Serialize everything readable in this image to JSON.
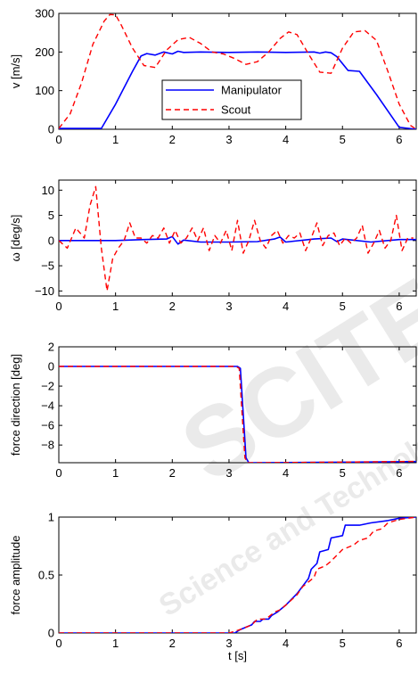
{
  "watermark": {
    "main": "SCITEPRESS",
    "sub": "Science and Technology Publications",
    "color": "#d9d9d9"
  },
  "legend": {
    "entries": [
      {
        "label": "Manipulator",
        "color": "#0000ff",
        "dash": "solid"
      },
      {
        "label": "Scout",
        "color": "#ff0000",
        "dash": "dashed"
      }
    ]
  },
  "chart_data": [
    {
      "type": "line",
      "xlabel": "",
      "ylabel": "v [m/s]",
      "xlim": [
        0,
        6.3
      ],
      "ylim": [
        0,
        300
      ],
      "xticks": [
        0,
        1,
        2,
        3,
        4,
        5,
        6
      ],
      "yticks": [
        0,
        100,
        200,
        300
      ],
      "legend_position": "center",
      "series": [
        {
          "name": "Manipulator",
          "color": "#0000ff",
          "dash": "solid",
          "x": [
            0,
            0.75,
            1.0,
            1.3,
            1.45,
            1.55,
            1.7,
            1.85,
            2.0,
            2.1,
            2.2,
            2.5,
            3.0,
            3.5,
            4.0,
            4.5,
            4.6,
            4.7,
            4.8,
            4.9,
            5.1,
            5.3,
            5.6,
            6.0,
            6.3
          ],
          "y": [
            2,
            2,
            65,
            150,
            190,
            196,
            192,
            200,
            195,
            202,
            199,
            200,
            199,
            200,
            199,
            200,
            197,
            200,
            198,
            188,
            152,
            150,
            90,
            5,
            0
          ]
        },
        {
          "name": "Scout",
          "color": "#ff0000",
          "dash": "dashed",
          "x": [
            0,
            0.2,
            0.4,
            0.6,
            0.8,
            0.9,
            1.0,
            1.1,
            1.3,
            1.5,
            1.7,
            1.9,
            2.1,
            2.3,
            2.5,
            2.7,
            2.9,
            3.1,
            3.3,
            3.5,
            3.7,
            3.9,
            4.05,
            4.2,
            4.4,
            4.6,
            4.8,
            5.0,
            5.2,
            5.4,
            5.6,
            5.8,
            6.0,
            6.2,
            6.3
          ],
          "y": [
            2,
            40,
            120,
            220,
            280,
            297,
            296,
            270,
            210,
            165,
            160,
            205,
            232,
            238,
            222,
            200,
            195,
            183,
            168,
            175,
            200,
            235,
            252,
            245,
            195,
            148,
            145,
            210,
            252,
            255,
            230,
            150,
            65,
            10,
            0
          ]
        }
      ]
    },
    {
      "type": "line",
      "xlabel": "",
      "ylabel": "ω [deg/s]",
      "xlim": [
        0,
        6.3
      ],
      "ylim": [
        -11,
        12
      ],
      "xticks": [
        0,
        1,
        2,
        3,
        4,
        5,
        6
      ],
      "yticks": [
        -10,
        -5,
        0,
        5,
        10
      ],
      "series": [
        {
          "name": "Manipulator",
          "color": "#0000ff",
          "dash": "solid",
          "x": [
            0,
            1.0,
            1.5,
            1.9,
            2.0,
            2.1,
            2.2,
            2.5,
            3.0,
            3.5,
            3.8,
            3.9,
            4.0,
            4.5,
            4.8,
            4.9,
            5.0,
            5.5,
            6.0,
            6.3
          ],
          "y": [
            0,
            0,
            0.2,
            0.3,
            0.8,
            -0.7,
            0.1,
            -0.3,
            -0.3,
            -0.2,
            0.3,
            0.7,
            -0.3,
            0.3,
            0.5,
            -0.2,
            0.3,
            -0.3,
            0.2,
            0.2
          ]
        },
        {
          "name": "Scout",
          "color": "#ff0000",
          "dash": "dashed",
          "x": [
            0,
            0.15,
            0.3,
            0.45,
            0.55,
            0.65,
            0.75,
            0.85,
            0.95,
            1.05,
            1.15,
            1.25,
            1.35,
            1.45,
            1.55,
            1.65,
            1.75,
            1.85,
            1.95,
            2.05,
            2.15,
            2.25,
            2.35,
            2.45,
            2.55,
            2.65,
            2.75,
            2.85,
            2.95,
            3.05,
            3.15,
            3.25,
            3.35,
            3.45,
            3.55,
            3.65,
            3.75,
            3.85,
            3.95,
            4.05,
            4.15,
            4.25,
            4.35,
            4.45,
            4.55,
            4.65,
            4.75,
            4.85,
            4.95,
            5.05,
            5.15,
            5.25,
            5.35,
            5.45,
            5.55,
            5.65,
            5.75,
            5.85,
            5.95,
            6.05,
            6.15,
            6.25
          ],
          "y": [
            0,
            -1.5,
            2.5,
            0.5,
            7,
            10.7,
            -1.5,
            -10,
            -3.5,
            -1.5,
            0,
            3.5,
            0.5,
            0.5,
            -0.5,
            1,
            0.5,
            2.5,
            -0.5,
            2,
            -0.5,
            0.5,
            2.5,
            0,
            2.5,
            -2,
            1,
            -0.5,
            2,
            -2,
            4,
            -2.5,
            0,
            4,
            0,
            -1.5,
            1,
            2,
            -0.5,
            1,
            0.5,
            1.5,
            -2,
            0.5,
            3.5,
            -1,
            1,
            1.5,
            -1,
            0.5,
            -0.5,
            0.5,
            3,
            -2.5,
            -0.5,
            2,
            -1.5,
            0,
            5,
            -2,
            0.5,
            0.5
          ]
        }
      ]
    },
    {
      "type": "line",
      "xlabel": "",
      "ylabel": "force direction [deg]",
      "xlim": [
        0,
        6.3
      ],
      "ylim": [
        -9.8,
        2
      ],
      "xticks": [
        0,
        1,
        2,
        3,
        4,
        5,
        6
      ],
      "yticks": [
        -8,
        -6,
        -4,
        -2,
        0,
        2
      ],
      "series": [
        {
          "name": "Manipulator",
          "color": "#0000ff",
          "dash": "solid",
          "x": [
            0,
            3.15,
            3.2,
            3.3,
            3.35,
            4.0,
            5.0,
            6.0,
            6.3
          ],
          "y": [
            0,
            0,
            -0.2,
            -9.3,
            -9.8,
            -9.78,
            -9.75,
            -9.7,
            -9.68
          ]
        },
        {
          "name": "Scout",
          "color": "#ff0000",
          "dash": "dashed",
          "x": [
            0,
            3.12,
            3.18,
            3.28,
            3.33,
            4.0,
            5.0,
            6.0,
            6.3
          ],
          "y": [
            0,
            0,
            -0.2,
            -9.3,
            -9.8,
            -9.78,
            -9.74,
            -9.68,
            -9.66
          ]
        }
      ]
    },
    {
      "type": "line",
      "xlabel": "t [s]",
      "ylabel": "force amplitude",
      "xlim": [
        0,
        6.3
      ],
      "ylim": [
        0,
        1
      ],
      "xticks": [
        0,
        1,
        2,
        3,
        4,
        5,
        6
      ],
      "yticks": [
        0,
        0.5,
        1
      ],
      "series": [
        {
          "name": "Manipulator",
          "color": "#0000ff",
          "dash": "solid",
          "x": [
            0,
            3.1,
            3.2,
            3.3,
            3.4,
            3.45,
            3.55,
            3.6,
            3.7,
            3.75,
            3.85,
            4.0,
            4.2,
            4.4,
            4.45,
            4.55,
            4.6,
            4.75,
            4.8,
            5.0,
            5.05,
            5.3,
            5.5,
            5.8,
            6.0,
            6.3
          ],
          "y": [
            0,
            0,
            0.03,
            0.05,
            0.07,
            0.1,
            0.1,
            0.12,
            0.12,
            0.15,
            0.18,
            0.24,
            0.34,
            0.47,
            0.55,
            0.6,
            0.7,
            0.72,
            0.82,
            0.84,
            0.93,
            0.93,
            0.95,
            0.97,
            0.99,
            1.0
          ]
        },
        {
          "name": "Scout",
          "color": "#ff0000",
          "dash": "dashed",
          "x": [
            0,
            3.0,
            3.2,
            3.4,
            3.5,
            3.65,
            3.8,
            3.9,
            4.0,
            4.2,
            4.3,
            4.5,
            4.55,
            4.7,
            4.8,
            4.9,
            5.0,
            5.2,
            5.3,
            5.45,
            5.55,
            5.7,
            5.8,
            6.0,
            6.3
          ],
          "y": [
            0,
            0,
            0.03,
            0.07,
            0.12,
            0.12,
            0.18,
            0.2,
            0.24,
            0.33,
            0.4,
            0.48,
            0.55,
            0.58,
            0.62,
            0.67,
            0.72,
            0.76,
            0.8,
            0.82,
            0.88,
            0.9,
            0.95,
            0.98,
            1.0
          ]
        }
      ]
    }
  ]
}
